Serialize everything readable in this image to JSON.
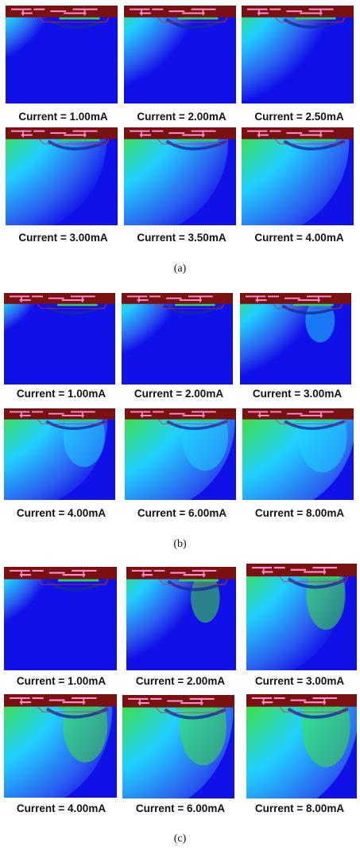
{
  "sections": [
    {
      "label": "(a)",
      "panels": [
        {
          "caption": "Current = 1.00mA",
          "intensity": 0.25,
          "spread": 0.35
        },
        {
          "caption": "Current = 2.00mA",
          "intensity": 0.4,
          "spread": 0.55
        },
        {
          "caption": "Current = 2.50mA",
          "intensity": 0.5,
          "spread": 0.65
        },
        {
          "caption": "Current = 3.00mA",
          "intensity": 0.65,
          "spread": 0.8
        },
        {
          "caption": "Current = 3.50mA",
          "intensity": 0.8,
          "spread": 0.85
        },
        {
          "caption": "Current = 4.00mA",
          "intensity": 0.9,
          "spread": 0.9
        }
      ]
    },
    {
      "label": "(b)",
      "panels": [
        {
          "caption": "Current = 1.00mA",
          "intensity": 0.2,
          "spread": 0.25
        },
        {
          "caption": "Current = 2.00mA",
          "intensity": 0.35,
          "spread": 0.45
        },
        {
          "caption": "Current = 3.00mA",
          "intensity": 0.45,
          "spread": 0.6
        },
        {
          "caption": "Current = 4.00mA",
          "intensity": 0.55,
          "spread": 0.85
        },
        {
          "caption": "Current = 6.00mA",
          "intensity": 0.65,
          "spread": 0.95
        },
        {
          "caption": "Current = 8.00mA",
          "intensity": 0.7,
          "spread": 1.0
        }
      ]
    },
    {
      "label": "(c)",
      "panels": [
        {
          "caption": "Current = 1.00mA",
          "intensity": 0.15,
          "spread": 0.35
        },
        {
          "caption": "Current = 2.00mA",
          "intensity": 0.25,
          "spread": 0.6
        },
        {
          "caption": "Current = 3.00mA",
          "intensity": 0.35,
          "spread": 0.8
        },
        {
          "caption": "Current = 4.00mA",
          "intensity": 0.55,
          "spread": 0.9
        },
        {
          "caption": "Current = 6.00mA",
          "intensity": 0.6,
          "spread": 0.95
        },
        {
          "caption": "Current = 8.00mA",
          "intensity": 0.7,
          "spread": 1.0
        }
      ]
    }
  ],
  "colors": {
    "background_blue": "#1010e8",
    "cap_layer": "#7a1010",
    "metal_lines": "#ff90d0",
    "hot": "#ff3000",
    "warm": "#ffe000",
    "mid": "#40e040",
    "cool": "#20d0ff"
  }
}
